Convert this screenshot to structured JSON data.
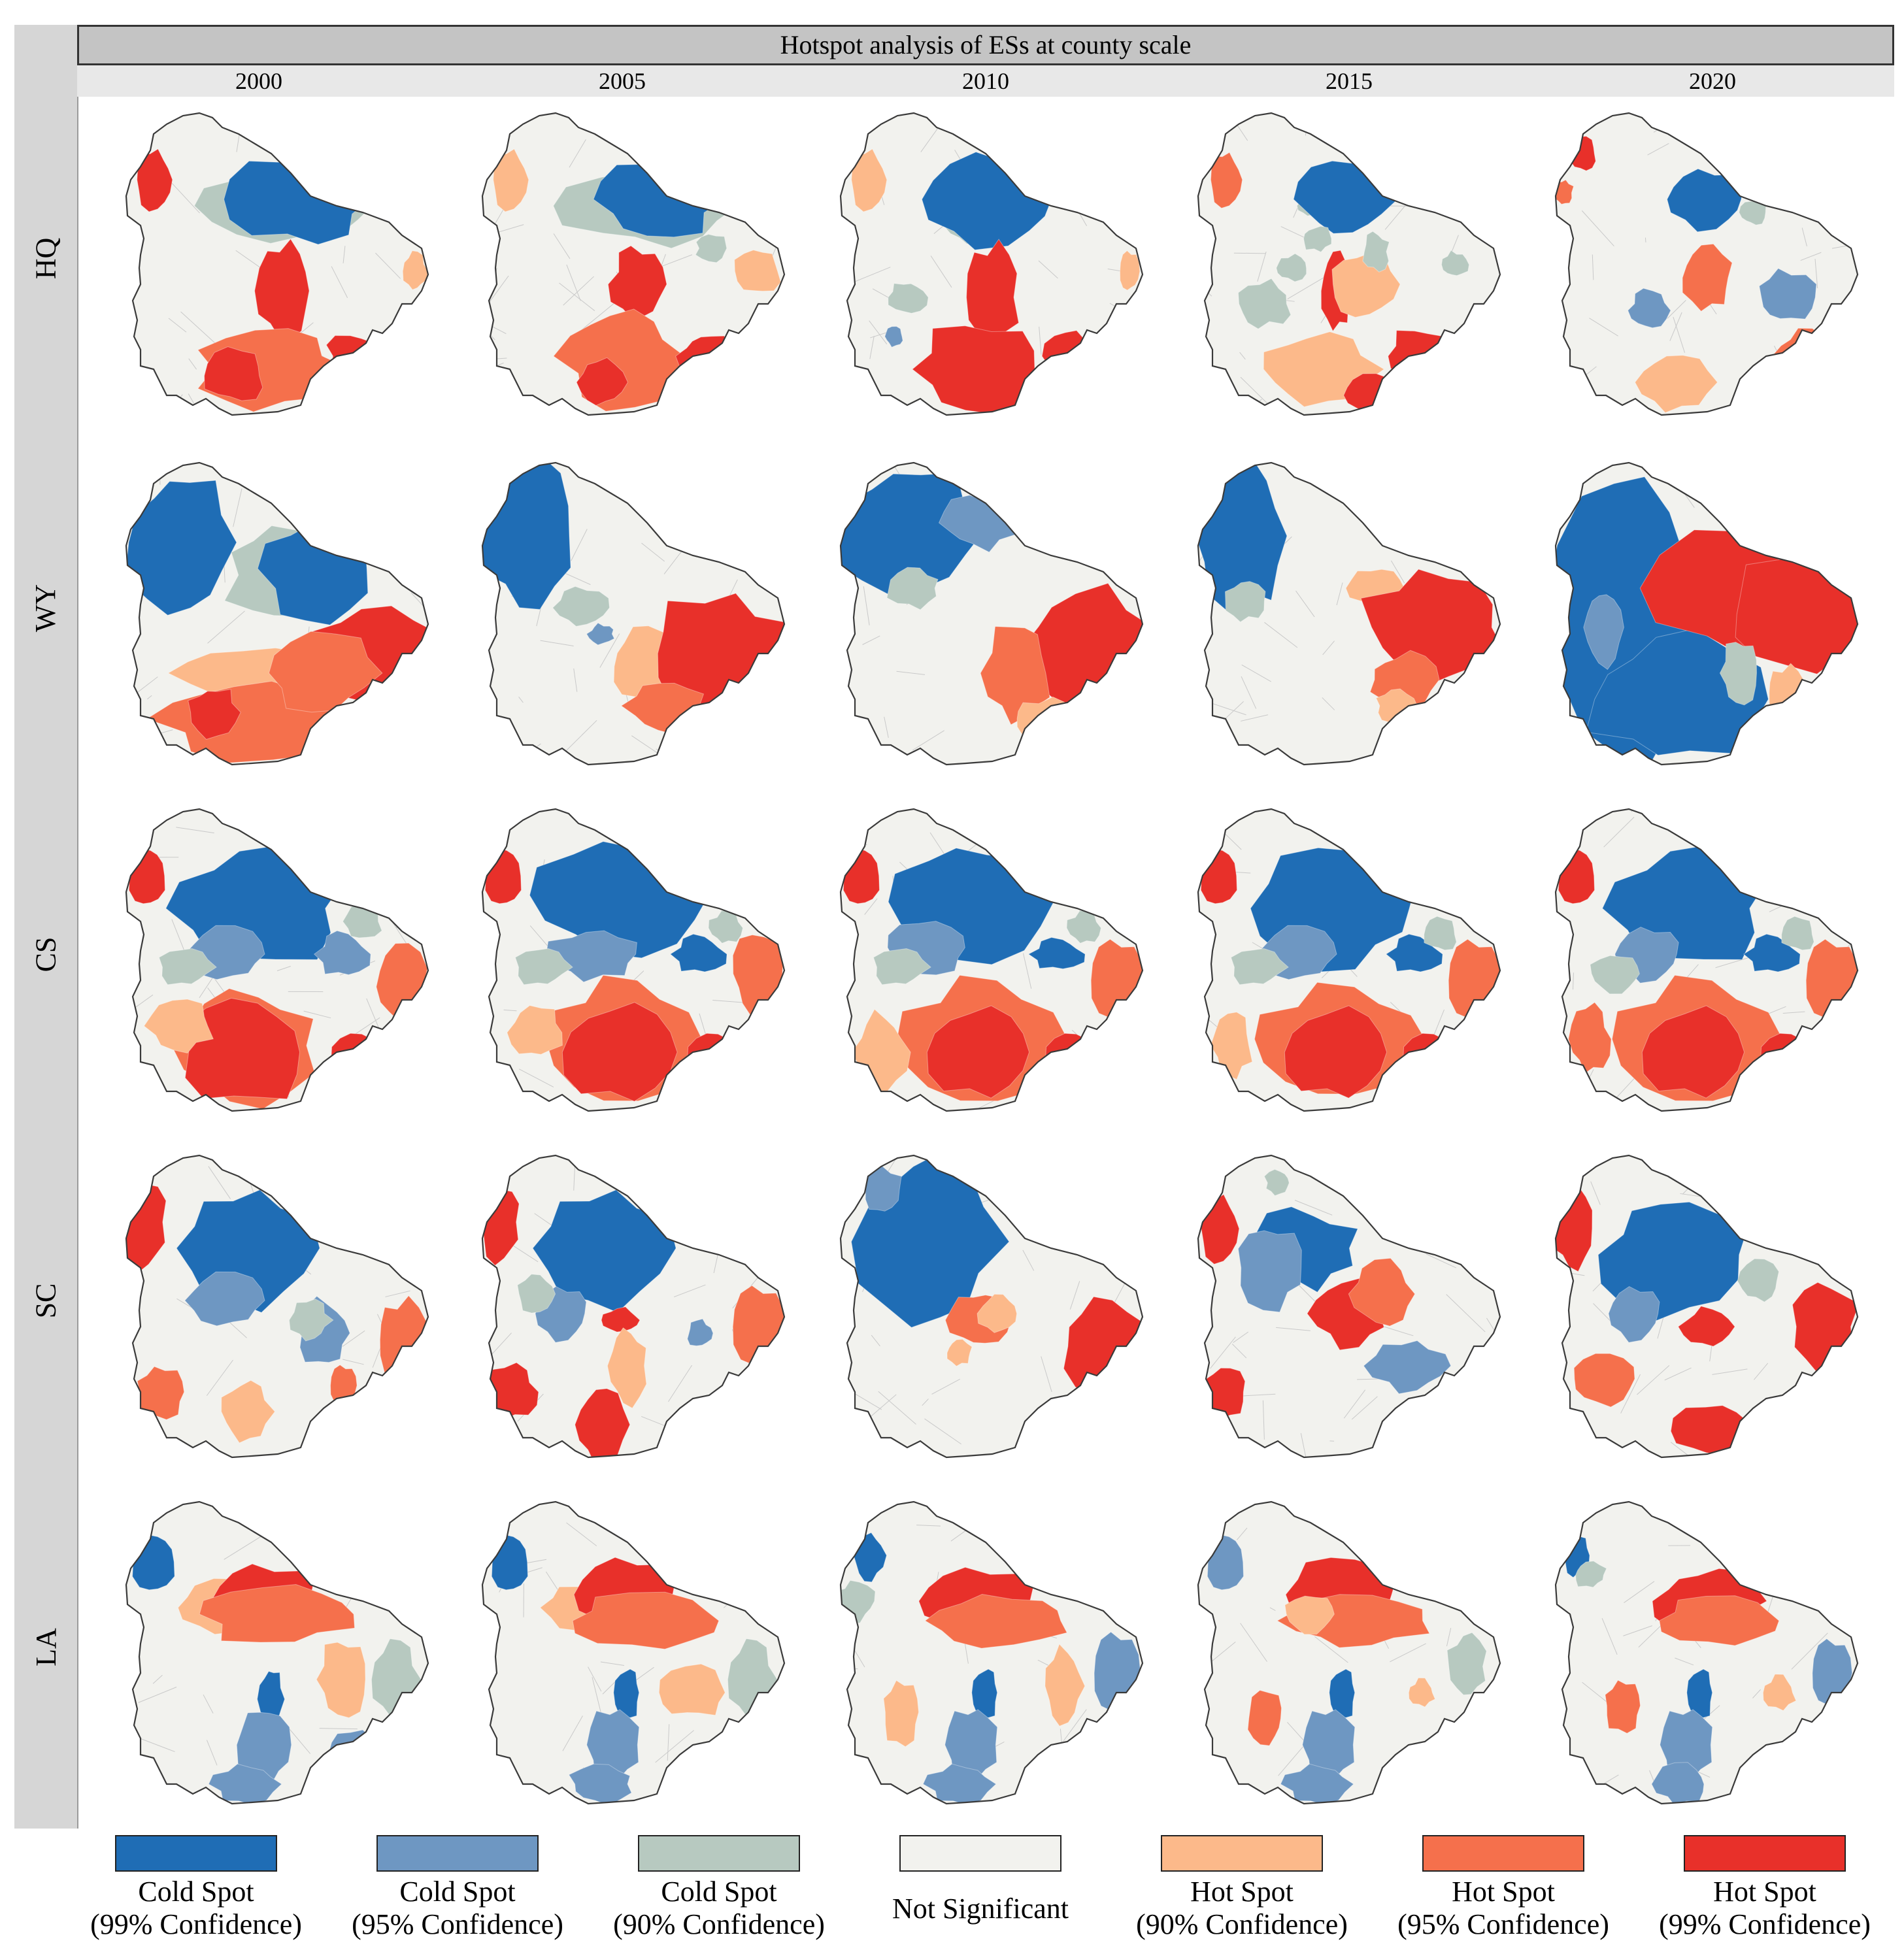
{
  "figure": {
    "title": "Hotspot analysis of ESs at county scale",
    "years": [
      "2000",
      "2005",
      "2010",
      "2015",
      "2020"
    ],
    "rows": [
      "HQ",
      "WY",
      "CS",
      "SC",
      "LA"
    ]
  },
  "classes": {
    "cold99": "#1f6db5",
    "cold95": "#6e97c2",
    "cold90": "#b7c9c0",
    "ns": "#f2f2ee",
    "hot90": "#fcb98a",
    "hot95": "#f5704c",
    "hot99": "#e8302a"
  },
  "legend": [
    {
      "key": "cold99",
      "line1": "Cold Spot",
      "line2": "(99% Confidence)"
    },
    {
      "key": "cold95",
      "line1": "Cold Spot",
      "line2": "(95% Confidence)"
    },
    {
      "key": "cold90",
      "line1": "Cold Spot",
      "line2": "(90% Confidence)"
    },
    {
      "key": "ns",
      "line1": "Not Significant",
      "line2": ""
    },
    {
      "key": "hot90",
      "line1": "Hot Spot",
      "line2": "(90% Confidence)"
    },
    {
      "key": "hot95",
      "line1": "Hot Spot",
      "line2": "(95% Confidence)"
    },
    {
      "key": "hot99",
      "line1": "Hot Spot",
      "line2": "(99% Confidence)"
    }
  ]
}
